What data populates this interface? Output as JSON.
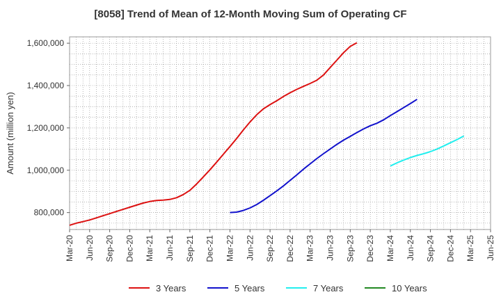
{
  "chart_data": {
    "type": "line",
    "title": "[8058]  Trend of Mean of 12-Month Moving Sum of Operating CF",
    "xlabel": "",
    "ylabel": "Amount (million yen)",
    "ylim": [
      720000,
      1630000
    ],
    "yticks": [
      800000,
      1000000,
      1200000,
      1400000,
      1600000
    ],
    "ytick_labels": [
      "800,000",
      "1,000,000",
      "1,200,000",
      "1,400,000",
      "1,600,000"
    ],
    "x_start": "Mar-20",
    "x_end": "Jun-25",
    "xtick_labels": [
      "Mar-20",
      "Jun-20",
      "Sep-20",
      "Dec-20",
      "Mar-21",
      "Jun-21",
      "Sep-21",
      "Dec-21",
      "Mar-22",
      "Jun-22",
      "Sep-22",
      "Dec-22",
      "Mar-23",
      "Jun-23",
      "Sep-23",
      "Dec-23",
      "Mar-24",
      "Jun-24",
      "Sep-24",
      "Dec-24",
      "Mar-25",
      "Jun-25"
    ],
    "grid": true,
    "legend_position": "bottom",
    "series": [
      {
        "name": "3 Years",
        "color": "#dd1111",
        "start": "Mar-20",
        "values": [
          740000,
          750000,
          757000,
          765000,
          775000,
          785000,
          795000,
          805000,
          815000,
          825000,
          835000,
          845000,
          852000,
          857000,
          859000,
          862000,
          870000,
          885000,
          905000,
          935000,
          968000,
          1002000,
          1038000,
          1075000,
          1112000,
          1150000,
          1190000,
          1228000,
          1262000,
          1290000,
          1310000,
          1328000,
          1348000,
          1366000,
          1382000,
          1396000,
          1410000,
          1425000,
          1450000,
          1485000,
          1520000,
          1555000,
          1585000,
          1602000
        ]
      },
      {
        "name": "5 Years",
        "color": "#1111cc",
        "start": "Mar-22",
        "values": [
          800000,
          802000,
          810000,
          822000,
          838000,
          858000,
          880000,
          902000,
          926000,
          952000,
          978000,
          1005000,
          1030000,
          1055000,
          1078000,
          1100000,
          1122000,
          1142000,
          1160000,
          1178000,
          1195000,
          1210000,
          1222000,
          1238000,
          1258000,
          1277000,
          1296000,
          1315000,
          1335000
        ]
      },
      {
        "name": "7 Years",
        "color": "#22eeee",
        "start": "Mar-24",
        "values": [
          1020000,
          1035000,
          1048000,
          1060000,
          1070000,
          1078000,
          1088000,
          1100000,
          1115000,
          1130000,
          1145000,
          1162000
        ]
      },
      {
        "name": "10 Years",
        "color": "#228822",
        "start": "",
        "values": []
      }
    ]
  }
}
